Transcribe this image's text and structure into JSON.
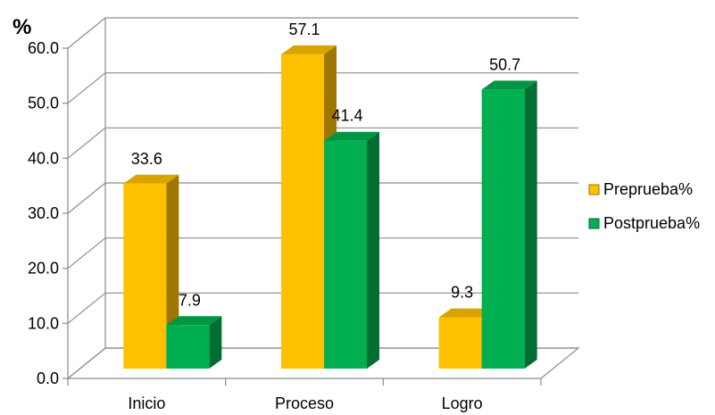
{
  "chart_data": {
    "type": "bar",
    "title": "",
    "ylabel": "%",
    "xlabel": "",
    "categories": [
      "Inicio",
      "Proceso",
      "Logro"
    ],
    "series": [
      {
        "name": "Preprueba%",
        "values": [
          33.6,
          57.1,
          9.3
        ],
        "color": "#FFC000"
      },
      {
        "name": "Postprueba%",
        "values": [
          7.9,
          41.4,
          50.7
        ],
        "color": "#00B050"
      }
    ],
    "ylim": [
      0,
      60
    ],
    "yticks": [
      "0.0",
      "10.0",
      "20.0",
      "30.0",
      "40.0",
      "50.0",
      "60.0"
    ],
    "value_labels": [
      [
        "33.6",
        "57.1",
        "9.3"
      ],
      [
        "7.9",
        "41.4",
        "50.7"
      ]
    ],
    "grid": true,
    "legend_position": "right",
    "style": "3d"
  }
}
